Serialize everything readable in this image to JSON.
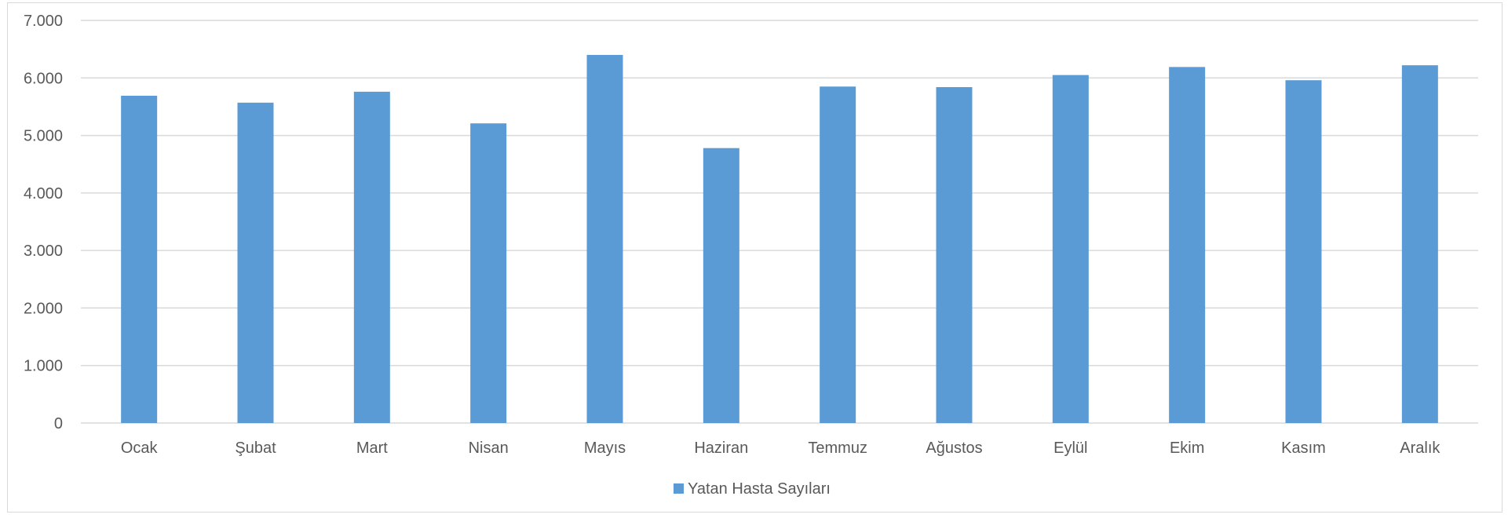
{
  "chart_data": {
    "type": "bar",
    "categories": [
      "Ocak",
      "Şubat",
      "Mart",
      "Nisan",
      "Mayıs",
      "Haziran",
      "Temmuz",
      "Ağustos",
      "Eylül",
      "Ekim",
      "Kasım",
      "Aralık"
    ],
    "series": [
      {
        "name": "Yatan Hasta Sayıları",
        "values": [
          5690,
          5570,
          5760,
          5210,
          6400,
          4780,
          5850,
          5840,
          6050,
          6190,
          5960,
          6220
        ],
        "color": "#5b9bd5"
      }
    ],
    "ylim": [
      0,
      7000
    ],
    "yticks": [
      0,
      1000,
      2000,
      3000,
      4000,
      5000,
      6000,
      7000
    ],
    "ytick_labels": [
      "0",
      "1.000",
      "2.000",
      "3.000",
      "4.000",
      "5.000",
      "6.000",
      "7.000"
    ],
    "grid": true,
    "grid_color": "#d9d9d9",
    "legend_position": "bottom",
    "title": "",
    "xlabel": "",
    "ylabel": ""
  }
}
